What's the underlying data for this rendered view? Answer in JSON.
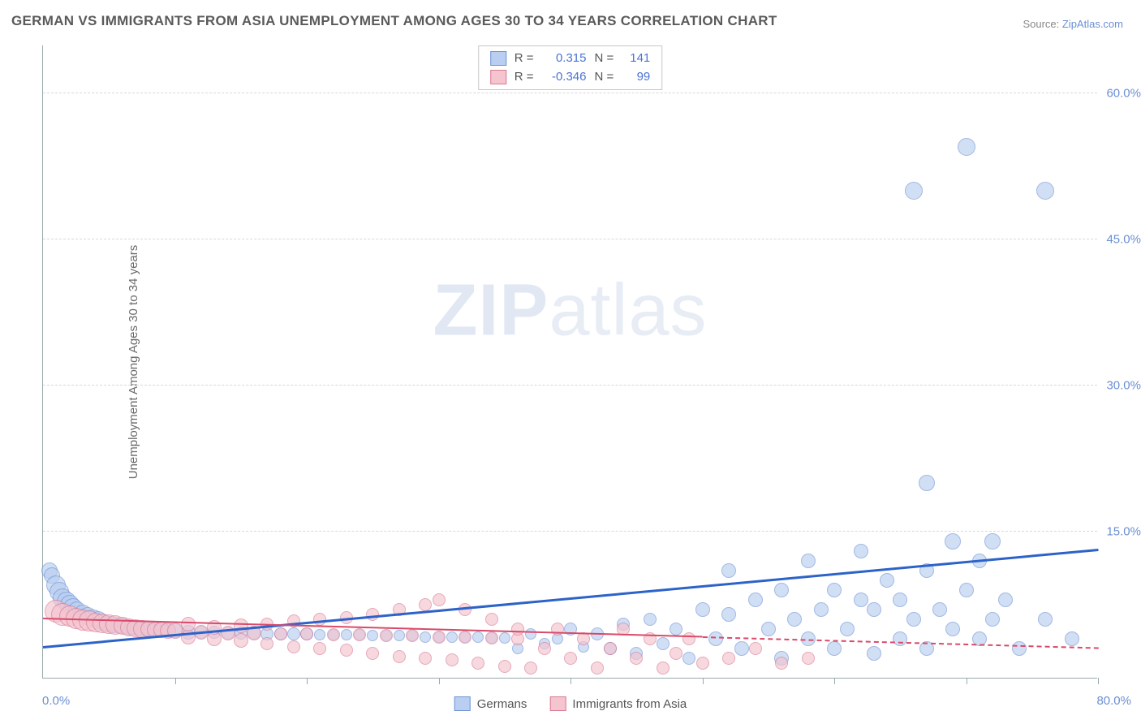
{
  "title": "GERMAN VS IMMIGRANTS FROM ASIA UNEMPLOYMENT AMONG AGES 30 TO 34 YEARS CORRELATION CHART",
  "source_prefix": "Source: ",
  "source_link": "ZipAtlas.com",
  "ylabel": "Unemployment Among Ages 30 to 34 years",
  "watermark_bold": "ZIP",
  "watermark_light": "atlas",
  "chart": {
    "type": "scatter",
    "xlim": [
      0,
      80
    ],
    "ylim": [
      0,
      65
    ],
    "xticks": [
      0,
      10,
      20,
      30,
      40,
      50,
      60,
      70,
      80
    ],
    "yticks": [
      15,
      30,
      45,
      60
    ],
    "ytick_labels": [
      "15.0%",
      "30.0%",
      "45.0%",
      "60.0%"
    ],
    "xmin_label": "0.0%",
    "xmax_label": "80.0%",
    "background_color": "#ffffff",
    "grid_color": "#d8d8d8",
    "axis_color": "#99aaaa",
    "tick_label_color": "#6b8fd4",
    "series": [
      {
        "id": "germans",
        "label": "Germans",
        "marker_fill": "#b9cef0",
        "marker_stroke": "#6f94d6",
        "marker_fill_opacity": 0.65,
        "trend_color": "#2d63c8",
        "trend_width": 3,
        "trend_dash": "solid",
        "trend_y_at_xmin": 3.0,
        "trend_y_at_xmax": 13.0,
        "R": "0.315",
        "N": "141",
        "points": [
          {
            "x": 0.5,
            "y": 11.0,
            "r": 10
          },
          {
            "x": 0.7,
            "y": 10.5,
            "r": 10
          },
          {
            "x": 1.0,
            "y": 9.5,
            "r": 12
          },
          {
            "x": 1.2,
            "y": 8.8,
            "r": 12
          },
          {
            "x": 1.5,
            "y": 8.2,
            "r": 12
          },
          {
            "x": 1.8,
            "y": 7.8,
            "r": 12
          },
          {
            "x": 2.0,
            "y": 7.5,
            "r": 12
          },
          {
            "x": 2.3,
            "y": 7.2,
            "r": 12
          },
          {
            "x": 2.6,
            "y": 6.9,
            "r": 11
          },
          {
            "x": 3.0,
            "y": 6.6,
            "r": 11
          },
          {
            "x": 3.4,
            "y": 6.3,
            "r": 11
          },
          {
            "x": 3.8,
            "y": 6.1,
            "r": 11
          },
          {
            "x": 4.2,
            "y": 5.9,
            "r": 11
          },
          {
            "x": 4.6,
            "y": 5.7,
            "r": 10
          },
          {
            "x": 5.0,
            "y": 5.5,
            "r": 10
          },
          {
            "x": 5.5,
            "y": 5.4,
            "r": 10
          },
          {
            "x": 6.0,
            "y": 5.3,
            "r": 10
          },
          {
            "x": 6.5,
            "y": 5.2,
            "r": 10
          },
          {
            "x": 7.0,
            "y": 5.1,
            "r": 9
          },
          {
            "x": 7.5,
            "y": 5.0,
            "r": 9
          },
          {
            "x": 8.0,
            "y": 5.0,
            "r": 9
          },
          {
            "x": 8.5,
            "y": 4.9,
            "r": 9
          },
          {
            "x": 9.0,
            "y": 4.9,
            "r": 9
          },
          {
            "x": 9.5,
            "y": 4.8,
            "r": 9
          },
          {
            "x": 10.0,
            "y": 4.8,
            "r": 9
          },
          {
            "x": 11.0,
            "y": 4.7,
            "r": 9
          },
          {
            "x": 12.0,
            "y": 4.7,
            "r": 8
          },
          {
            "x": 13.0,
            "y": 4.7,
            "r": 8
          },
          {
            "x": 14.0,
            "y": 4.6,
            "r": 8
          },
          {
            "x": 15.0,
            "y": 4.6,
            "r": 8
          },
          {
            "x": 16.0,
            "y": 4.6,
            "r": 8
          },
          {
            "x": 17.0,
            "y": 4.5,
            "r": 8
          },
          {
            "x": 18.0,
            "y": 4.5,
            "r": 8
          },
          {
            "x": 19.0,
            "y": 4.5,
            "r": 8
          },
          {
            "x": 20.0,
            "y": 4.5,
            "r": 8
          },
          {
            "x": 21.0,
            "y": 4.4,
            "r": 7
          },
          {
            "x": 22.0,
            "y": 4.4,
            "r": 7
          },
          {
            "x": 23.0,
            "y": 4.4,
            "r": 7
          },
          {
            "x": 24.0,
            "y": 4.4,
            "r": 7
          },
          {
            "x": 25.0,
            "y": 4.3,
            "r": 7
          },
          {
            "x": 26.0,
            "y": 4.3,
            "r": 7
          },
          {
            "x": 27.0,
            "y": 4.3,
            "r": 7
          },
          {
            "x": 28.0,
            "y": 4.3,
            "r": 7
          },
          {
            "x": 29.0,
            "y": 4.2,
            "r": 7
          },
          {
            "x": 30.0,
            "y": 4.2,
            "r": 7
          },
          {
            "x": 31.0,
            "y": 4.2,
            "r": 7
          },
          {
            "x": 32.0,
            "y": 4.2,
            "r": 7
          },
          {
            "x": 33.0,
            "y": 4.2,
            "r": 7
          },
          {
            "x": 34.0,
            "y": 4.1,
            "r": 7
          },
          {
            "x": 35.0,
            "y": 4.1,
            "r": 7
          },
          {
            "x": 36.0,
            "y": 3.0,
            "r": 7
          },
          {
            "x": 37.0,
            "y": 4.5,
            "r": 7
          },
          {
            "x": 38.0,
            "y": 3.5,
            "r": 7
          },
          {
            "x": 39.0,
            "y": 4.0,
            "r": 7
          },
          {
            "x": 40.0,
            "y": 5.0,
            "r": 8
          },
          {
            "x": 41.0,
            "y": 3.2,
            "r": 7
          },
          {
            "x": 42.0,
            "y": 4.5,
            "r": 8
          },
          {
            "x": 43.0,
            "y": 3.0,
            "r": 8
          },
          {
            "x": 44.0,
            "y": 5.5,
            "r": 8
          },
          {
            "x": 45.0,
            "y": 2.5,
            "r": 8
          },
          {
            "x": 46.0,
            "y": 6.0,
            "r": 8
          },
          {
            "x": 47.0,
            "y": 3.5,
            "r": 8
          },
          {
            "x": 48.0,
            "y": 5.0,
            "r": 8
          },
          {
            "x": 49.0,
            "y": 2.0,
            "r": 8
          },
          {
            "x": 50.0,
            "y": 7.0,
            "r": 9
          },
          {
            "x": 51.0,
            "y": 4.0,
            "r": 9
          },
          {
            "x": 52.0,
            "y": 6.5,
            "r": 9
          },
          {
            "x": 52.0,
            "y": 11.0,
            "r": 9
          },
          {
            "x": 53.0,
            "y": 3.0,
            "r": 9
          },
          {
            "x": 54.0,
            "y": 8.0,
            "r": 9
          },
          {
            "x": 55.0,
            "y": 5.0,
            "r": 9
          },
          {
            "x": 56.0,
            "y": 9.0,
            "r": 9
          },
          {
            "x": 56.0,
            "y": 2.0,
            "r": 9
          },
          {
            "x": 57.0,
            "y": 6.0,
            "r": 9
          },
          {
            "x": 58.0,
            "y": 4.0,
            "r": 9
          },
          {
            "x": 58.0,
            "y": 12.0,
            "r": 9
          },
          {
            "x": 59.0,
            "y": 7.0,
            "r": 9
          },
          {
            "x": 60.0,
            "y": 3.0,
            "r": 9
          },
          {
            "x": 60.0,
            "y": 9.0,
            "r": 9
          },
          {
            "x": 61.0,
            "y": 5.0,
            "r": 9
          },
          {
            "x": 62.0,
            "y": 8.0,
            "r": 9
          },
          {
            "x": 62.0,
            "y": 13.0,
            "r": 9
          },
          {
            "x": 63.0,
            "y": 2.5,
            "r": 9
          },
          {
            "x": 63.0,
            "y": 7.0,
            "r": 9
          },
          {
            "x": 64.0,
            "y": 10.0,
            "r": 9
          },
          {
            "x": 65.0,
            "y": 4.0,
            "r": 9
          },
          {
            "x": 65.0,
            "y": 8.0,
            "r": 9
          },
          {
            "x": 66.0,
            "y": 6.0,
            "r": 9
          },
          {
            "x": 67.0,
            "y": 11.0,
            "r": 9
          },
          {
            "x": 67.0,
            "y": 3.0,
            "r": 9
          },
          {
            "x": 67.0,
            "y": 20.0,
            "r": 10
          },
          {
            "x": 68.0,
            "y": 7.0,
            "r": 9
          },
          {
            "x": 69.0,
            "y": 5.0,
            "r": 9
          },
          {
            "x": 69.0,
            "y": 14.0,
            "r": 10
          },
          {
            "x": 70.0,
            "y": 9.0,
            "r": 9
          },
          {
            "x": 71.0,
            "y": 4.0,
            "r": 9
          },
          {
            "x": 71.0,
            "y": 12.0,
            "r": 9
          },
          {
            "x": 72.0,
            "y": 6.0,
            "r": 9
          },
          {
            "x": 72.0,
            "y": 14.0,
            "r": 10
          },
          {
            "x": 73.0,
            "y": 8.0,
            "r": 9
          },
          {
            "x": 74.0,
            "y": 3.0,
            "r": 9
          },
          {
            "x": 76.0,
            "y": 6.0,
            "r": 9
          },
          {
            "x": 78.0,
            "y": 4.0,
            "r": 9
          },
          {
            "x": 66.0,
            "y": 50.0,
            "r": 11
          },
          {
            "x": 70.0,
            "y": 54.5,
            "r": 11
          },
          {
            "x": 76.0,
            "y": 50.0,
            "r": 11
          }
        ]
      },
      {
        "id": "asia",
        "label": "Immigrants from Asia",
        "marker_fill": "#f4c4cf",
        "marker_stroke": "#d97a94",
        "marker_fill_opacity": 0.65,
        "trend_color": "#d94a6a",
        "trend_width": 2,
        "trend_dash": "solid",
        "trend_y_at_xmin": 6.0,
        "trend_y_at_xmax": 3.0,
        "trend_dash_after_x": 50,
        "R": "-0.346",
        "N": "99",
        "points": [
          {
            "x": 1.0,
            "y": 6.8,
            "r": 14
          },
          {
            "x": 1.5,
            "y": 6.5,
            "r": 14
          },
          {
            "x": 2.0,
            "y": 6.3,
            "r": 13
          },
          {
            "x": 2.5,
            "y": 6.1,
            "r": 13
          },
          {
            "x": 3.0,
            "y": 5.9,
            "r": 13
          },
          {
            "x": 3.5,
            "y": 5.8,
            "r": 13
          },
          {
            "x": 4.0,
            "y": 5.7,
            "r": 12
          },
          {
            "x": 4.5,
            "y": 5.6,
            "r": 12
          },
          {
            "x": 5.0,
            "y": 5.5,
            "r": 12
          },
          {
            "x": 5.5,
            "y": 5.4,
            "r": 12
          },
          {
            "x": 6.0,
            "y": 5.3,
            "r": 11
          },
          {
            "x": 6.5,
            "y": 5.2,
            "r": 11
          },
          {
            "x": 7.0,
            "y": 5.1,
            "r": 11
          },
          {
            "x": 7.5,
            "y": 5.0,
            "r": 11
          },
          {
            "x": 8.0,
            "y": 5.0,
            "r": 10
          },
          {
            "x": 8.5,
            "y": 4.9,
            "r": 10
          },
          {
            "x": 9.0,
            "y": 4.9,
            "r": 10
          },
          {
            "x": 9.5,
            "y": 4.8,
            "r": 10
          },
          {
            "x": 10.0,
            "y": 4.8,
            "r": 10
          },
          {
            "x": 11.0,
            "y": 4.2,
            "r": 9
          },
          {
            "x": 11.0,
            "y": 5.5,
            "r": 9
          },
          {
            "x": 12.0,
            "y": 4.7,
            "r": 9
          },
          {
            "x": 13.0,
            "y": 4.0,
            "r": 9
          },
          {
            "x": 13.0,
            "y": 5.2,
            "r": 9
          },
          {
            "x": 14.0,
            "y": 4.6,
            "r": 9
          },
          {
            "x": 15.0,
            "y": 3.8,
            "r": 9
          },
          {
            "x": 15.0,
            "y": 5.3,
            "r": 9
          },
          {
            "x": 16.0,
            "y": 4.6,
            "r": 9
          },
          {
            "x": 17.0,
            "y": 3.5,
            "r": 8
          },
          {
            "x": 17.0,
            "y": 5.5,
            "r": 8
          },
          {
            "x": 18.0,
            "y": 4.5,
            "r": 8
          },
          {
            "x": 19.0,
            "y": 3.2,
            "r": 8
          },
          {
            "x": 19.0,
            "y": 5.8,
            "r": 8
          },
          {
            "x": 20.0,
            "y": 4.5,
            "r": 8
          },
          {
            "x": 21.0,
            "y": 3.0,
            "r": 8
          },
          {
            "x": 21.0,
            "y": 6.0,
            "r": 8
          },
          {
            "x": 22.0,
            "y": 4.4,
            "r": 8
          },
          {
            "x": 23.0,
            "y": 2.8,
            "r": 8
          },
          {
            "x": 23.0,
            "y": 6.2,
            "r": 8
          },
          {
            "x": 24.0,
            "y": 4.4,
            "r": 8
          },
          {
            "x": 25.0,
            "y": 2.5,
            "r": 8
          },
          {
            "x": 25.0,
            "y": 6.5,
            "r": 8
          },
          {
            "x": 26.0,
            "y": 4.3,
            "r": 8
          },
          {
            "x": 27.0,
            "y": 2.2,
            "r": 8
          },
          {
            "x": 27.0,
            "y": 7.0,
            "r": 8
          },
          {
            "x": 28.0,
            "y": 4.3,
            "r": 8
          },
          {
            "x": 29.0,
            "y": 2.0,
            "r": 8
          },
          {
            "x": 29.0,
            "y": 7.5,
            "r": 8
          },
          {
            "x": 30.0,
            "y": 4.2,
            "r": 8
          },
          {
            "x": 30.0,
            "y": 8.0,
            "r": 8
          },
          {
            "x": 31.0,
            "y": 1.8,
            "r": 8
          },
          {
            "x": 32.0,
            "y": 4.2,
            "r": 8
          },
          {
            "x": 32.0,
            "y": 7.0,
            "r": 8
          },
          {
            "x": 33.0,
            "y": 1.5,
            "r": 8
          },
          {
            "x": 34.0,
            "y": 4.1,
            "r": 8
          },
          {
            "x": 34.0,
            "y": 6.0,
            "r": 8
          },
          {
            "x": 35.0,
            "y": 1.2,
            "r": 8
          },
          {
            "x": 36.0,
            "y": 4.0,
            "r": 8
          },
          {
            "x": 36.0,
            "y": 5.0,
            "r": 8
          },
          {
            "x": 37.0,
            "y": 1.0,
            "r": 8
          },
          {
            "x": 38.0,
            "y": 3.0,
            "r": 8
          },
          {
            "x": 39.0,
            "y": 5.0,
            "r": 8
          },
          {
            "x": 40.0,
            "y": 2.0,
            "r": 8
          },
          {
            "x": 41.0,
            "y": 4.0,
            "r": 8
          },
          {
            "x": 42.0,
            "y": 1.0,
            "r": 8
          },
          {
            "x": 43.0,
            "y": 3.0,
            "r": 8
          },
          {
            "x": 44.0,
            "y": 5.0,
            "r": 8
          },
          {
            "x": 45.0,
            "y": 2.0,
            "r": 8
          },
          {
            "x": 46.0,
            "y": 4.0,
            "r": 8
          },
          {
            "x": 47.0,
            "y": 1.0,
            "r": 8
          },
          {
            "x": 48.0,
            "y": 2.5,
            "r": 8
          },
          {
            "x": 49.0,
            "y": 4.0,
            "r": 8
          },
          {
            "x": 50.0,
            "y": 1.5,
            "r": 8
          },
          {
            "x": 52.0,
            "y": 2.0,
            "r": 8
          },
          {
            "x": 54.0,
            "y": 3.0,
            "r": 8
          },
          {
            "x": 56.0,
            "y": 1.5,
            "r": 8
          },
          {
            "x": 58.0,
            "y": 2.0,
            "r": 8
          }
        ]
      }
    ]
  },
  "stats_box": {
    "R_label": "R =",
    "N_label": "N ="
  },
  "legend": {
    "series1": "Germans",
    "series2": "Immigrants from Asia"
  }
}
